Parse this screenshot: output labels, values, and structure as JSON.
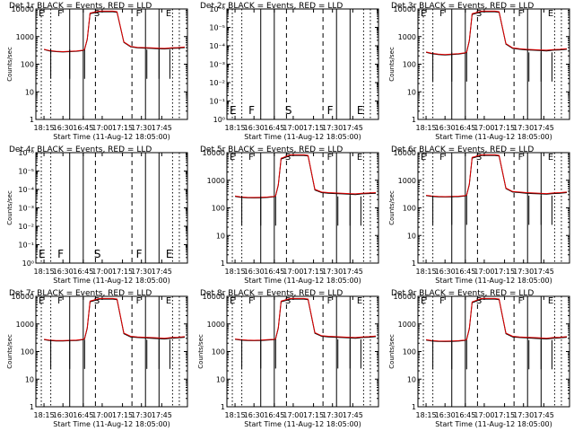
{
  "figure": {
    "background": "#ffffff",
    "events_color": "#000000",
    "lld_color": "#e00000"
  },
  "chart_data": [
    {
      "type": "line",
      "title": "Det 1r BLACK = Events, RED = LLD",
      "xlabel": "Start Time (11-Aug-12 18:05:00)",
      "ylabel": "Counts/sec",
      "yscale": "log",
      "ylim": [
        1,
        12000
      ],
      "ytick_labels": [
        "1",
        "10",
        "100",
        "1000",
        "10000"
      ],
      "xticks": [
        "18:15",
        "16:30",
        "16:45",
        "17:00",
        "17:15",
        "17:30",
        "17:45"
      ],
      "has_data": true,
      "region_labels": [
        "E",
        "F",
        "S",
        "F",
        "E"
      ],
      "series": [
        {
          "name": "Events",
          "x": [
            6,
            10,
            15,
            20,
            25,
            30,
            35,
            36,
            38,
            40,
            47,
            50,
            55,
            57,
            60,
            65,
            70,
            75,
            80,
            85,
            90,
            95,
            100,
            105,
            110
          ],
          "y": [
            380,
            340,
            320,
            310,
            320,
            330,
            350,
            380,
            900,
            8000,
            9500,
            9500,
            9500,
            9500,
            9000,
            700,
            480,
            440,
            430,
            420,
            410,
            400,
            420,
            430,
            450
          ]
        },
        {
          "name": "LLD",
          "x": [
            6,
            10,
            15,
            20,
            25,
            30,
            35,
            36,
            38,
            40,
            47,
            50,
            55,
            57,
            60,
            65,
            70,
            75,
            80,
            85,
            90,
            95,
            100,
            105,
            110
          ],
          "y": [
            390,
            350,
            330,
            320,
            330,
            340,
            360,
            390,
            950,
            8500,
            10000,
            10000,
            10000,
            10000,
            9500,
            730,
            500,
            460,
            450,
            440,
            430,
            420,
            440,
            450,
            470
          ]
        }
      ]
    },
    {
      "type": "line",
      "title": "Det 2r BLACK = Events, RED = LLD",
      "xlabel": "Start Time (11-Aug-12 18:05:00)",
      "ylabel": "",
      "yscale": "log",
      "ylim": [
        1,
        1e-06
      ],
      "ytick_labels": [
        "10⁰",
        "10⁻¹",
        "10⁻²",
        "10⁻³",
        "10⁻⁴",
        "10⁻⁵",
        "10⁻⁶"
      ],
      "xticks": [
        "18:15",
        "16:30",
        "16:45",
        "17:00",
        "17:15",
        "17:30",
        "17:45"
      ],
      "has_data": false,
      "region_labels": [
        "E",
        "F",
        "S",
        "F",
        "E"
      ],
      "series": []
    },
    {
      "type": "line",
      "title": "Det 3r BLACK = Events, RED = LLD",
      "xlabel": "Start Time (11-Aug-12 18:05:00)",
      "ylabel": "Counts/sec",
      "yscale": "log",
      "ylim": [
        1,
        12000
      ],
      "ytick_labels": [
        "1",
        "10",
        "100",
        "1000",
        "10000"
      ],
      "xticks": [
        "18:15",
        "16:30",
        "16:45",
        "17:00",
        "17:15",
        "17:30",
        "17:45"
      ],
      "has_data": true,
      "region_labels": [
        "E",
        "F",
        "S",
        "F",
        "E"
      ],
      "series": [
        {
          "name": "Events",
          "x": [
            6,
            10,
            15,
            20,
            25,
            30,
            35,
            36,
            38,
            40,
            47,
            50,
            55,
            57,
            60,
            65,
            70,
            75,
            80,
            85,
            90,
            95,
            100,
            105,
            110
          ],
          "y": [
            300,
            270,
            250,
            240,
            250,
            260,
            280,
            300,
            800,
            7500,
            9500,
            9500,
            9500,
            9500,
            9000,
            600,
            420,
            390,
            370,
            360,
            350,
            340,
            360,
            370,
            390
          ]
        },
        {
          "name": "LLD",
          "x": [
            6,
            10,
            15,
            20,
            25,
            30,
            35,
            36,
            38,
            40,
            47,
            50,
            55,
            57,
            60,
            65,
            70,
            75,
            80,
            85,
            90,
            95,
            100,
            105,
            110
          ],
          "y": [
            310,
            280,
            260,
            250,
            260,
            270,
            290,
            310,
            850,
            8000,
            10000,
            10000,
            10000,
            10000,
            9500,
            630,
            440,
            410,
            390,
            380,
            370,
            360,
            380,
            390,
            410
          ]
        }
      ]
    },
    {
      "type": "line",
      "title": "Det 4r BLACK = Events, RED = LLD",
      "xlabel": "Start Time (11-Aug-12 18:05:00)",
      "ylabel": "Counts/sec",
      "yscale": "log",
      "ylim": [
        1,
        1e-06
      ],
      "ytick_labels": [
        "10⁰",
        "10⁻¹",
        "10⁻²",
        "10⁻³",
        "10⁻⁴",
        "10⁻⁵",
        "10⁻⁶"
      ],
      "xticks": [
        "18:15",
        "16:30",
        "16:45",
        "17:00",
        "17:15",
        "17:30",
        "17:45"
      ],
      "has_data": false,
      "region_labels": [
        "E",
        "F",
        "S",
        "F",
        "E"
      ],
      "series": []
    },
    {
      "type": "line",
      "title": "Det 5r BLACK = Events, RED = LLD",
      "xlabel": "Start Time (11-Aug-12 18:05:00)",
      "ylabel": "",
      "yscale": "log",
      "ylim": [
        1,
        12000
      ],
      "ytick_labels": [
        "1",
        "10",
        "100",
        "1000",
        "10000"
      ],
      "xticks": [
        "18:15",
        "16:30",
        "16:45",
        "17:00",
        "17:15",
        "17:30",
        "17:45"
      ],
      "has_data": true,
      "region_labels": [
        "E",
        "F",
        "S",
        "F",
        "E"
      ],
      "series": [
        {
          "name": "Events",
          "x": [
            6,
            10,
            15,
            20,
            25,
            30,
            35,
            36,
            38,
            40,
            47,
            50,
            55,
            57,
            60,
            65,
            70,
            75,
            80,
            85,
            90,
            95,
            100,
            105,
            110
          ],
          "y": [
            290,
            270,
            260,
            255,
            260,
            265,
            280,
            300,
            750,
            7000,
            9500,
            9500,
            9500,
            9500,
            9000,
            500,
            400,
            380,
            370,
            360,
            350,
            340,
            360,
            370,
            380
          ]
        },
        {
          "name": "LLD",
          "x": [
            6,
            10,
            15,
            20,
            25,
            30,
            35,
            36,
            38,
            40,
            47,
            50,
            55,
            57,
            60,
            65,
            70,
            75,
            80,
            85,
            90,
            95,
            100,
            105,
            110
          ],
          "y": [
            300,
            280,
            270,
            265,
            270,
            275,
            290,
            310,
            800,
            7500,
            10000,
            10000,
            10000,
            10000,
            9500,
            530,
            420,
            400,
            390,
            380,
            370,
            360,
            380,
            390,
            400
          ]
        }
      ]
    },
    {
      "type": "line",
      "title": "Det 6r BLACK = Events, RED = LLD",
      "xlabel": "Start Time (11-Aug-12 18:05:00)",
      "ylabel": "Counts/sec",
      "yscale": "log",
      "ylim": [
        1,
        12000
      ],
      "ytick_labels": [
        "1",
        "10",
        "100",
        "1000",
        "10000"
      ],
      "xticks": [
        "18:15",
        "16:30",
        "16:45",
        "17:00",
        "17:15",
        "17:30",
        "17:45"
      ],
      "has_data": true,
      "region_labels": [
        "E",
        "F",
        "S",
        "F",
        "E"
      ],
      "series": [
        {
          "name": "Events",
          "x": [
            6,
            10,
            15,
            20,
            25,
            30,
            35,
            36,
            38,
            40,
            47,
            50,
            55,
            57,
            60,
            65,
            70,
            75,
            80,
            85,
            90,
            95,
            100,
            105,
            110
          ],
          "y": [
            310,
            290,
            280,
            275,
            280,
            285,
            300,
            320,
            800,
            7500,
            9500,
            9500,
            9500,
            9500,
            9000,
            560,
            420,
            400,
            380,
            370,
            360,
            350,
            370,
            380,
            400
          ]
        },
        {
          "name": "LLD",
          "x": [
            6,
            10,
            15,
            20,
            25,
            30,
            35,
            36,
            38,
            40,
            47,
            50,
            55,
            57,
            60,
            65,
            70,
            75,
            80,
            85,
            90,
            95,
            100,
            105,
            110
          ],
          "y": [
            320,
            300,
            290,
            285,
            290,
            295,
            310,
            330,
            850,
            8000,
            10000,
            10000,
            10000,
            10000,
            9500,
            590,
            440,
            420,
            400,
            390,
            380,
            370,
            390,
            400,
            420
          ]
        }
      ]
    },
    {
      "type": "line",
      "title": "Det 7r BLACK = Events, RED = LLD",
      "xlabel": "Start Time (11-Aug-12 18:05:00)",
      "ylabel": "Counts/sec",
      "yscale": "log",
      "ylim": [
        1,
        12000
      ],
      "ytick_labels": [
        "1",
        "10",
        "100",
        "1000",
        "10000"
      ],
      "xticks": [
        "18:15",
        "16:30",
        "16:45",
        "17:00",
        "17:15",
        "17:30",
        "17:45"
      ],
      "has_data": true,
      "region_labels": [
        "E",
        "F",
        "S",
        "F",
        "E"
      ],
      "series": [
        {
          "name": "Events",
          "x": [
            6,
            10,
            15,
            20,
            25,
            30,
            35,
            36,
            38,
            40,
            47,
            50,
            55,
            57,
            60,
            65,
            70,
            75,
            80,
            85,
            90,
            95,
            100,
            105,
            110
          ],
          "y": [
            300,
            280,
            270,
            270,
            275,
            280,
            300,
            320,
            800,
            7500,
            9500,
            9500,
            9500,
            9500,
            9000,
            500,
            380,
            360,
            350,
            340,
            330,
            320,
            340,
            350,
            370
          ]
        },
        {
          "name": "LLD",
          "x": [
            6,
            10,
            15,
            20,
            25,
            30,
            35,
            36,
            38,
            40,
            47,
            50,
            55,
            57,
            60,
            65,
            70,
            75,
            80,
            85,
            90,
            95,
            100,
            105,
            110
          ],
          "y": [
            310,
            290,
            280,
            280,
            285,
            290,
            310,
            330,
            850,
            8000,
            10000,
            10000,
            10000,
            10000,
            9500,
            530,
            400,
            380,
            370,
            360,
            350,
            340,
            360,
            370,
            390
          ]
        }
      ]
    },
    {
      "type": "line",
      "title": "Det 8r BLACK = Events, RED = LLD",
      "xlabel": "Start Time (11-Aug-12 18:05:00)",
      "ylabel": "Counts/sec",
      "yscale": "log",
      "ylim": [
        1,
        12000
      ],
      "ytick_labels": [
        "1",
        "10",
        "100",
        "1000",
        "10000"
      ],
      "xticks": [
        "18:15",
        "16:30",
        "16:45",
        "17:00",
        "17:15",
        "17:30",
        "17:45"
      ],
      "has_data": true,
      "region_labels": [
        "E",
        "F",
        "S",
        "F",
        "E"
      ],
      "series": [
        {
          "name": "Events",
          "x": [
            6,
            10,
            15,
            20,
            25,
            30,
            35,
            36,
            38,
            40,
            47,
            50,
            55,
            57,
            60,
            65,
            70,
            75,
            80,
            85,
            90,
            95,
            100,
            105,
            110
          ],
          "y": [
            310,
            290,
            280,
            275,
            280,
            290,
            300,
            320,
            800,
            7500,
            9500,
            9500,
            9500,
            9500,
            9000,
            520,
            400,
            380,
            370,
            360,
            350,
            340,
            360,
            370,
            390
          ]
        },
        {
          "name": "LLD",
          "x": [
            6,
            10,
            15,
            20,
            25,
            30,
            35,
            36,
            38,
            40,
            47,
            50,
            55,
            57,
            60,
            65,
            70,
            75,
            80,
            85,
            90,
            95,
            100,
            105,
            110
          ],
          "y": [
            320,
            300,
            290,
            285,
            290,
            300,
            310,
            330,
            850,
            8000,
            10000,
            10000,
            10000,
            10000,
            9500,
            550,
            420,
            400,
            390,
            380,
            370,
            360,
            380,
            390,
            410
          ]
        }
      ]
    },
    {
      "type": "line",
      "title": "Det 9r BLACK = Events, RED = LLD",
      "xlabel": "Start Time (11-Aug-12 18:05:00)",
      "ylabel": "Counts/sec",
      "yscale": "log",
      "ylim": [
        1,
        12000
      ],
      "ytick_labels": [
        "1",
        "10",
        "100",
        "1000",
        "10000"
      ],
      "xticks": [
        "18:15",
        "16:30",
        "16:45",
        "17:00",
        "17:15",
        "17:30",
        "17:45"
      ],
      "has_data": true,
      "region_labels": [
        "E",
        "F",
        "S",
        "F",
        "E"
      ],
      "series": [
        {
          "name": "Events",
          "x": [
            6,
            10,
            15,
            20,
            25,
            30,
            35,
            36,
            38,
            40,
            47,
            50,
            55,
            57,
            60,
            65,
            70,
            75,
            80,
            85,
            90,
            95,
            100,
            105,
            110
          ],
          "y": [
            290,
            270,
            260,
            255,
            260,
            265,
            280,
            300,
            750,
            7000,
            9500,
            9500,
            9500,
            9500,
            9000,
            500,
            380,
            360,
            350,
            340,
            330,
            320,
            340,
            350,
            370
          ]
        },
        {
          "name": "LLD",
          "x": [
            6,
            10,
            15,
            20,
            25,
            30,
            35,
            36,
            38,
            40,
            47,
            50,
            55,
            57,
            60,
            65,
            70,
            75,
            80,
            85,
            90,
            95,
            100,
            105,
            110
          ],
          "y": [
            300,
            280,
            270,
            265,
            270,
            275,
            290,
            310,
            800,
            7500,
            10000,
            10000,
            10000,
            10000,
            9500,
            530,
            400,
            380,
            370,
            360,
            350,
            340,
            360,
            370,
            390
          ]
        }
      ]
    }
  ]
}
